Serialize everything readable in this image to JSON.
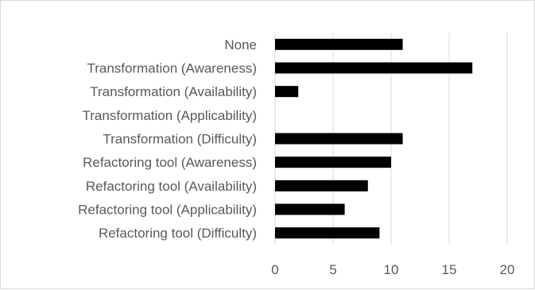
{
  "chart_data": {
    "type": "bar",
    "orientation": "horizontal",
    "categories": [
      "None",
      "Transformation (Awareness)",
      "Transformation (Availability)",
      "Transformation (Applicability)",
      "Transformation (Difficulty)",
      "Refactoring tool (Awareness)",
      "Refactoring tool (Availability)",
      "Refactoring tool (Applicability)",
      "Refactoring tool (Difficulty)"
    ],
    "values": [
      11,
      17,
      2,
      0,
      11,
      10,
      8,
      6,
      9
    ],
    "xlim": [
      0,
      20
    ],
    "xticks": [
      "0",
      "5",
      "10",
      "15",
      "20"
    ],
    "grid": "vertical",
    "bar_color": "#000000",
    "gridline_color": "#d9d9d9"
  }
}
